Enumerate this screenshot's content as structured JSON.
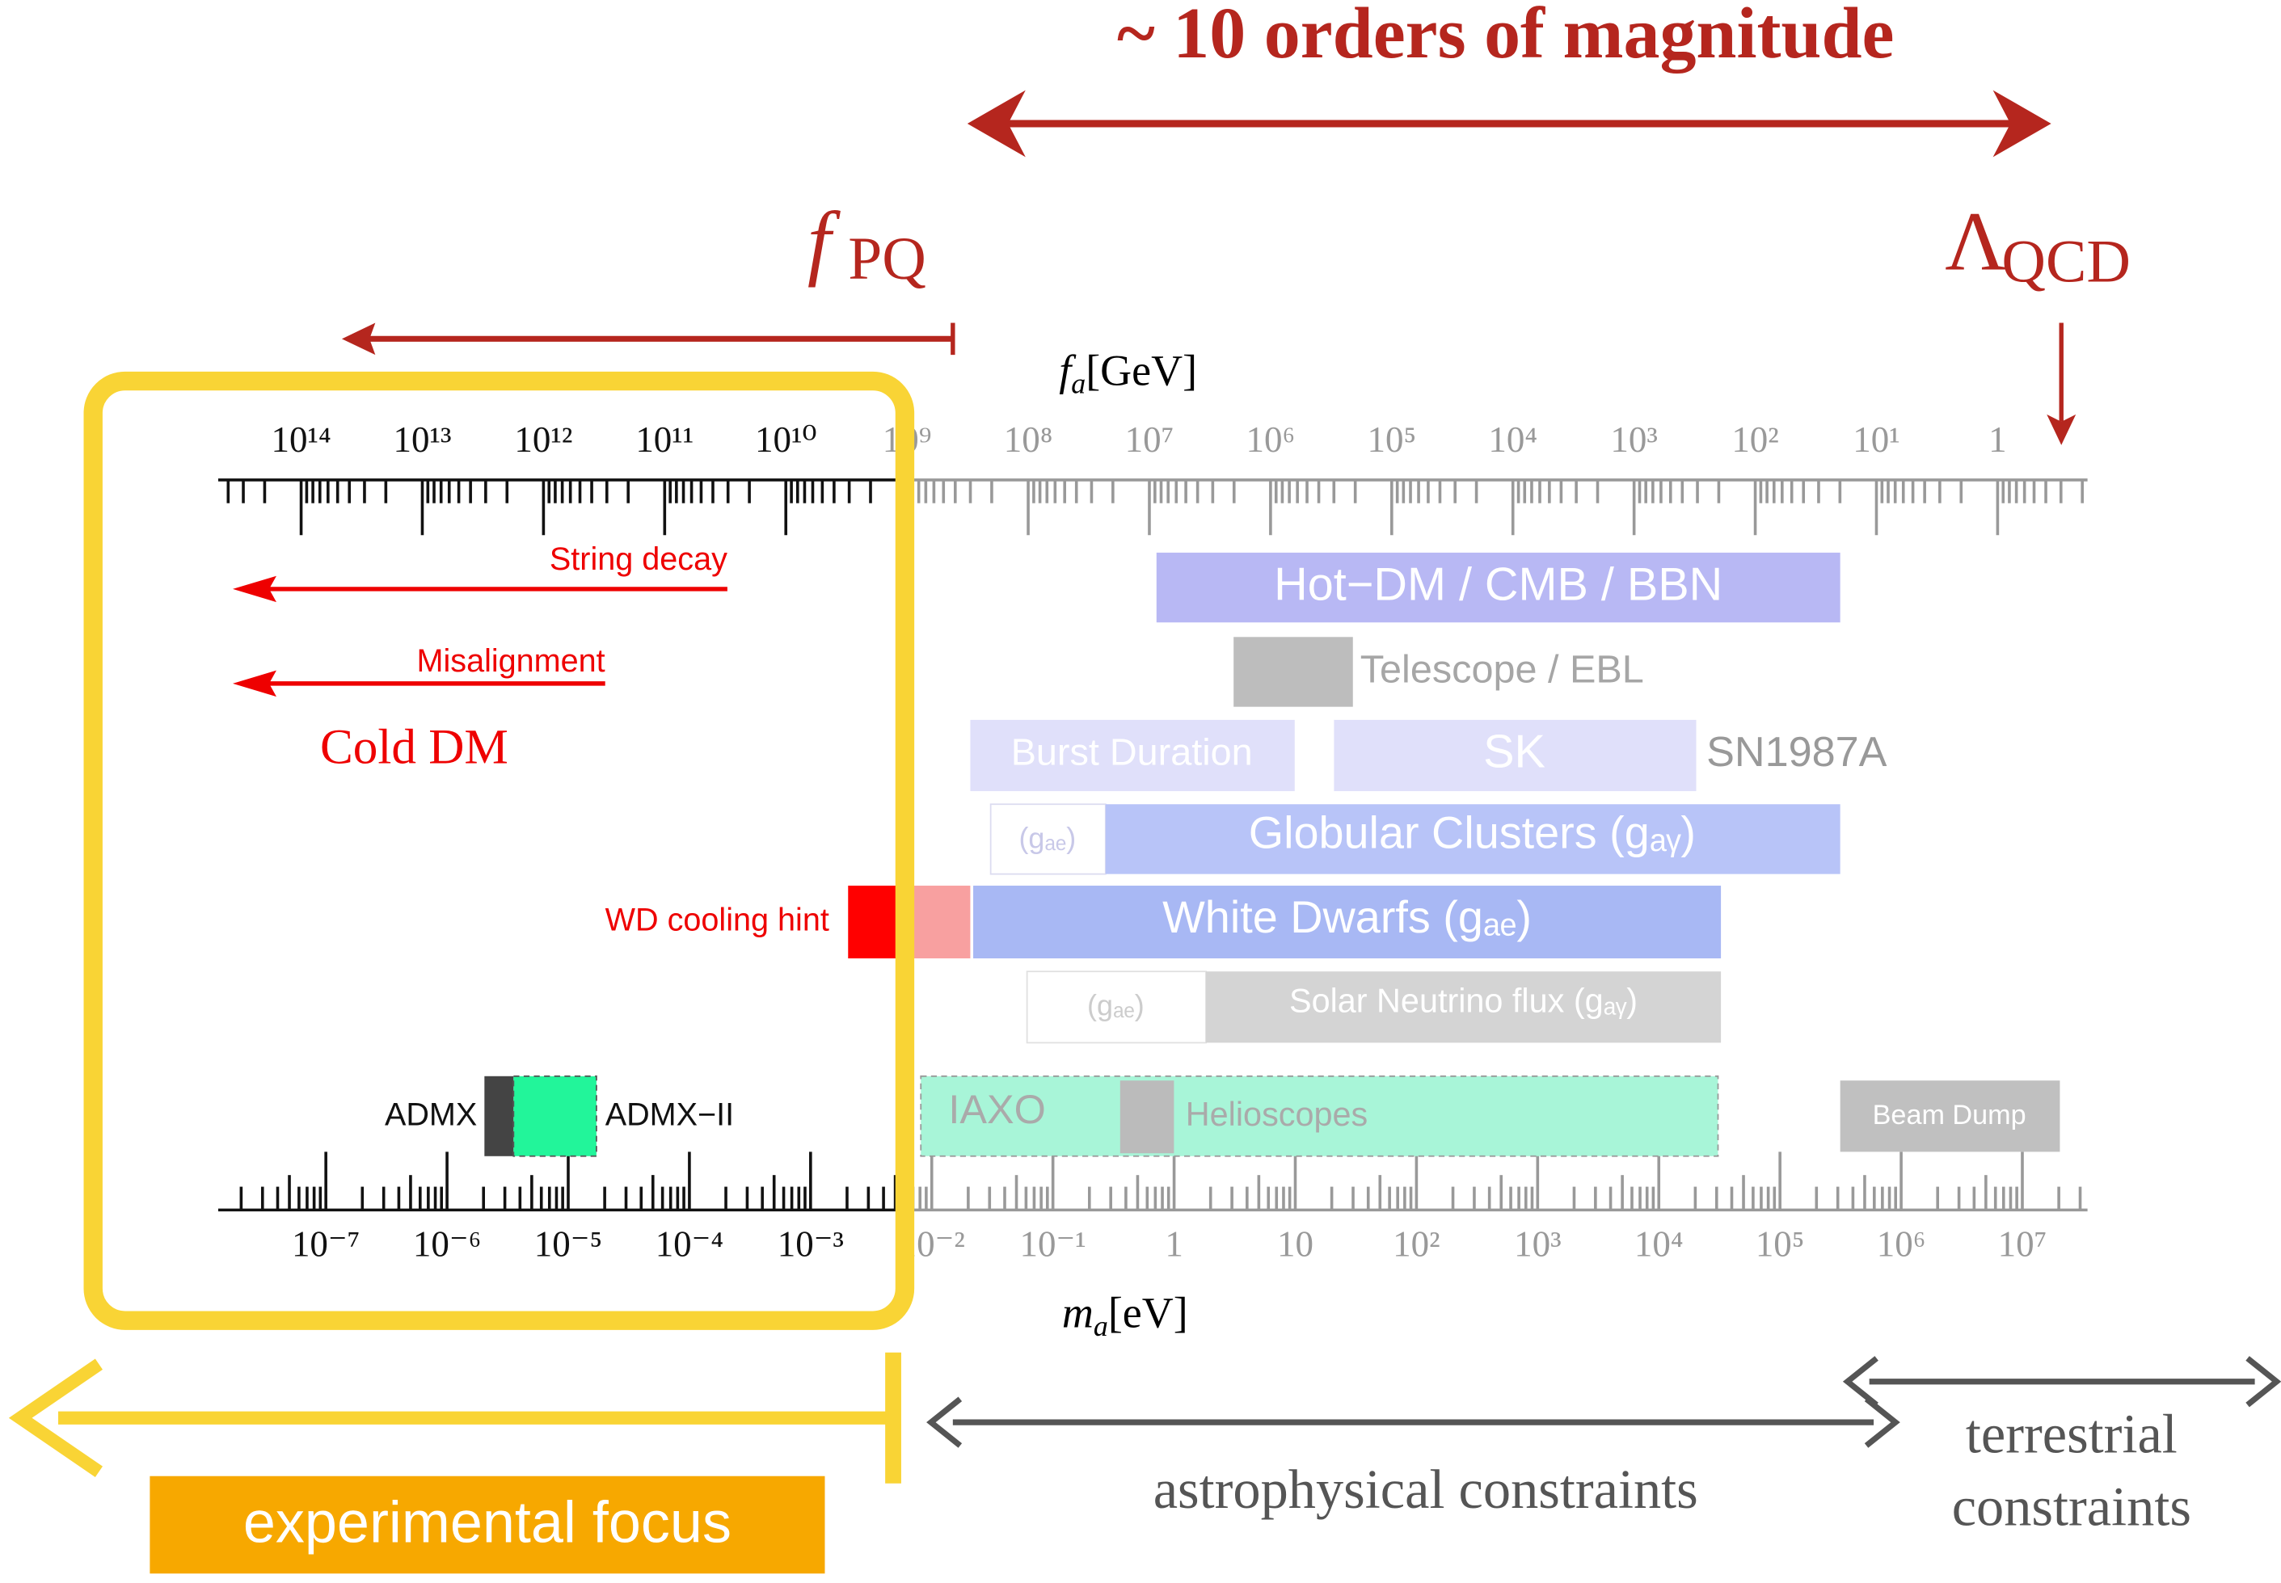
{
  "title": "~ 10 orders of magnitude",
  "f_pq": {
    "main": "f",
    "sub": "PQ"
  },
  "lambda_qcd": {
    "main": "Λ",
    "sub": "QCD"
  },
  "top_axis": {
    "label": {
      "var": "f",
      "sub": "a",
      "unit": "[GeV]"
    },
    "ticks": [
      "10¹⁴",
      "10¹³",
      "10¹²",
      "10¹¹",
      "10¹⁰",
      "10⁹",
      "10⁸",
      "10⁷",
      "10⁶",
      "10⁵",
      "10⁴",
      "10³",
      "10²",
      "10¹",
      "1"
    ]
  },
  "bottom_axis": {
    "label": {
      "var": "m",
      "sub": "a",
      "unit": "[eV]"
    },
    "ticks": [
      "10⁻⁷",
      "10⁻⁶",
      "10⁻⁵",
      "10⁻⁴",
      "10⁻³",
      "10⁻²",
      "10⁻¹",
      "1",
      "10",
      "10²",
      "10³",
      "10⁴",
      "10⁵",
      "10⁶",
      "10⁷"
    ]
  },
  "cosmology": {
    "string_decay": "String decay",
    "misalignment": "Misalignment",
    "cold_dm": "Cold DM"
  },
  "constraints": {
    "hot_dm": "Hot−DM / CMB / BBN",
    "telescope": "Telescope / EBL",
    "burst": "Burst Duration",
    "sk": "SK",
    "sn1987a": "SN1987A",
    "globular_gae": "(gₐₑ)",
    "globular": "Globular Clusters (gₐᵧ)",
    "wd_hint": "WD cooling hint",
    "white_dwarfs": "White Dwarfs (gₐₑ)",
    "solar_gae": "(gₐₑ)",
    "solar": "Solar Neutrino flux (gₐᵧ)",
    "admx": "ADMX",
    "admx2": "ADMX−II",
    "iaxo": "IAXO",
    "helioscopes": "Helioscopes",
    "beam_dump": "Beam Dump"
  },
  "footer": {
    "astro": "astrophysical constraints",
    "terrestrial_1": "terrestrial",
    "terrestrial_2": "constraints",
    "focus": "experimental focus"
  }
}
